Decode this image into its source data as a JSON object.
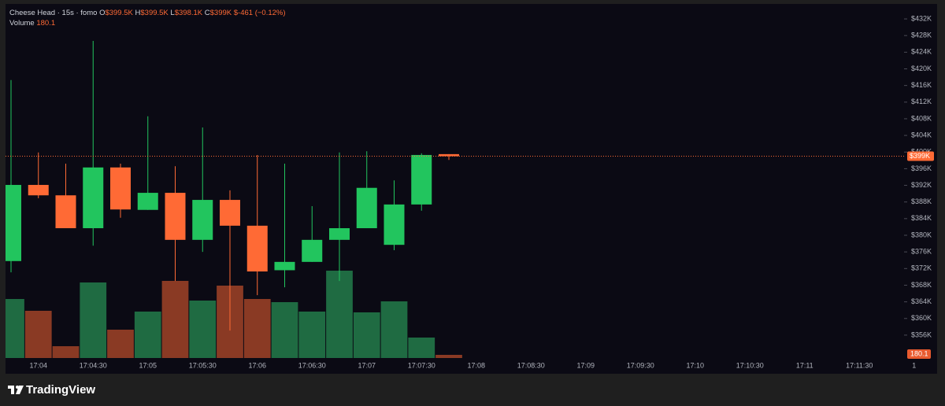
{
  "chart_data": {
    "type": "candlestick",
    "legend": {
      "title": "Cheese Head · 15s · fomo",
      "open_label": "O",
      "open": "$399.5K",
      "high_label": "H",
      "high": "$399.5K",
      "low_label": "L",
      "low": "$398.1K",
      "close_label": "C",
      "close": "$399K",
      "change": "$-461 (−0.12%)",
      "volume_label": "Volume",
      "volume": "180.1"
    },
    "candles": {
      "open": [
        373800,
        392100,
        389600,
        381700,
        396300,
        386100,
        390200,
        378900,
        388500,
        382300,
        371600,
        373600,
        378900,
        381700,
        377700,
        387400,
        399500
      ],
      "high": [
        417300,
        399900,
        397200,
        426700,
        397200,
        408600,
        396600,
        405900,
        390800,
        399300,
        397200,
        387000,
        399900,
        400200,
        393200,
        399700,
        399500
      ],
      "low": [
        371100,
        388900,
        381700,
        377500,
        384200,
        386100,
        369000,
        376000,
        357100,
        365600,
        367500,
        373600,
        369000,
        381700,
        376400,
        385900,
        398100
      ],
      "close": [
        392100,
        389600,
        381700,
        396300,
        386200,
        390200,
        378900,
        388500,
        382300,
        371300,
        373600,
        378900,
        381700,
        391400,
        387400,
        399300,
        399000
      ]
    },
    "volume": {
      "values": [
        3375,
        2700,
        675,
        4320,
        1620,
        2655,
        4410,
        3285,
        4140,
        3375,
        3195,
        2655,
        4995,
        2610,
        3240,
        1170,
        180.1
      ]
    },
    "volume_lim": [
      0,
      20250
    ],
    "up_color": "#22c55e",
    "down_color": "#ff6a35",
    "volume_up_color": "#1f6b42",
    "volume_down_color": "#8a3a24",
    "ylim": [
      350500,
      435600
    ],
    "yticks": [
      {
        "value": 356000,
        "label": "$356K"
      },
      {
        "value": 360000,
        "label": "$360K"
      },
      {
        "value": 364000,
        "label": "$364K"
      },
      {
        "value": 368000,
        "label": "$368K"
      },
      {
        "value": 372000,
        "label": "$372K"
      },
      {
        "value": 376000,
        "label": "$376K"
      },
      {
        "value": 380000,
        "label": "$380K"
      },
      {
        "value": 384000,
        "label": "$384K"
      },
      {
        "value": 388000,
        "label": "$388K"
      },
      {
        "value": 392000,
        "label": "$392K"
      },
      {
        "value": 396000,
        "label": "$396K"
      },
      {
        "value": 400000,
        "label": "$400K"
      },
      {
        "value": 404000,
        "label": "$404K"
      },
      {
        "value": 408000,
        "label": "$408K"
      },
      {
        "value": 412000,
        "label": "$412K"
      },
      {
        "value": 416000,
        "label": "$416K"
      },
      {
        "value": 420000,
        "label": "$420K"
      },
      {
        "value": 424000,
        "label": "$424K"
      },
      {
        "value": 428000,
        "label": "$428K"
      },
      {
        "value": 432000,
        "label": "$432K"
      }
    ],
    "last_price": {
      "value": 399000,
      "label": "$399K"
    },
    "time_labels": [
      "17:04",
      "17:04:30",
      "17:05",
      "17:05:30",
      "17:06",
      "17:06:30",
      "17:07",
      "17:07:30",
      "17:08",
      "17:08:30",
      "17:09",
      "17:09:30",
      "17:10",
      "17:10:30",
      "17:11",
      "17:11:30",
      "1"
    ],
    "brand": "TradingView"
  }
}
